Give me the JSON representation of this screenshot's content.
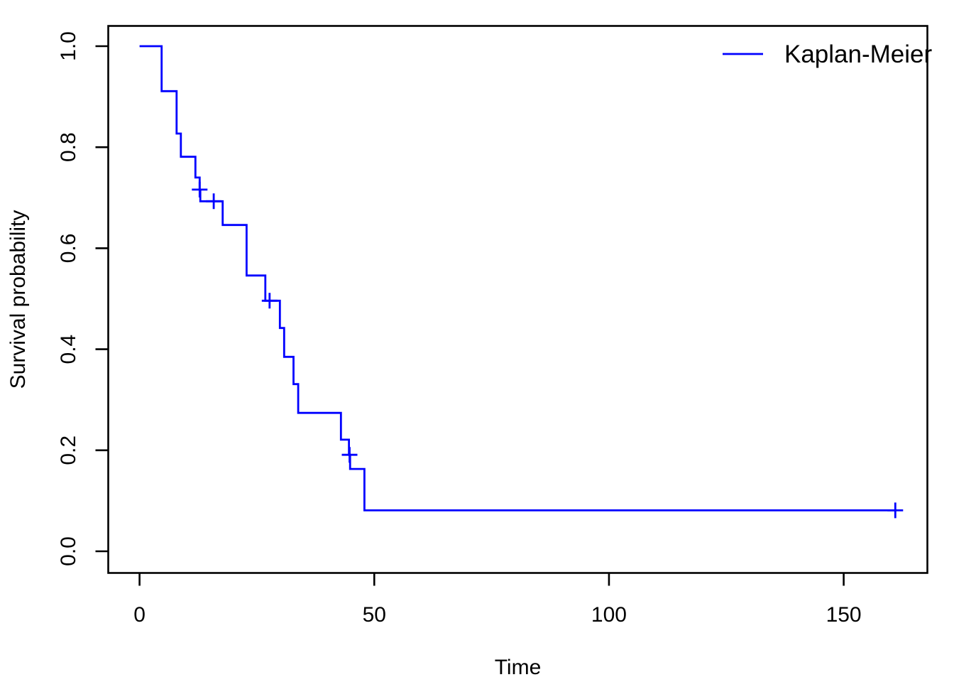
{
  "page": {
    "background": "#ffffff"
  },
  "chart_data": {
    "type": "line",
    "subtype": "kaplan_meier_step_curve",
    "title": "",
    "xlabel": "Time",
    "ylabel": "Survival probability",
    "grid": false,
    "axis_color": "#000000",
    "x_axis": {
      "ticks": [
        {
          "label": "0",
          "value": 0
        },
        {
          "label": "50",
          "value": 50
        },
        {
          "label": "100",
          "value": 100
        },
        {
          "label": "150",
          "value": 150
        }
      ],
      "range_shown": [
        -6.6,
        167.8
      ]
    },
    "y_axis": {
      "ticks": [
        {
          "label": "0.0",
          "value": 0.0
        },
        {
          "label": "0.2",
          "value": 0.2
        },
        {
          "label": "0.4",
          "value": 0.4
        },
        {
          "label": "0.6",
          "value": 0.6
        },
        {
          "label": "0.8",
          "value": 0.8
        },
        {
          "label": "1.0",
          "value": 1.0
        }
      ],
      "range_shown": [
        -0.04,
        1.04
      ]
    },
    "legend": {
      "position": "topright",
      "box": false,
      "entries": [
        {
          "label": "Kaplan-Meier",
          "color": "#0000FF"
        }
      ]
    },
    "series": [
      {
        "name": "Kaplan-Meier",
        "color": "#0000FF",
        "start": [
          0,
          1.0
        ],
        "steps": [
          [
            4.7,
            0.911
          ],
          [
            7.9,
            0.827
          ],
          [
            8.8,
            0.781
          ],
          [
            11.9,
            0.74
          ],
          [
            12.8,
            0.716
          ],
          [
            12.95,
            0.693
          ],
          [
            17.7,
            0.646
          ],
          [
            22.8,
            0.546
          ],
          [
            26.8,
            0.496
          ],
          [
            29.9,
            0.442
          ],
          [
            30.8,
            0.385
          ],
          [
            32.8,
            0.331
          ],
          [
            33.8,
            0.274
          ],
          [
            42.9,
            0.221
          ],
          [
            44.6,
            0.191
          ],
          [
            44.85,
            0.163
          ],
          [
            47.9,
            0.081
          ]
        ],
        "end_time": 161,
        "censored": [
          [
            12.8,
            0.716
          ],
          [
            15.8,
            0.693
          ],
          [
            27.7,
            0.496
          ],
          [
            44.75,
            0.191
          ],
          [
            161,
            0.081
          ]
        ]
      }
    ]
  }
}
